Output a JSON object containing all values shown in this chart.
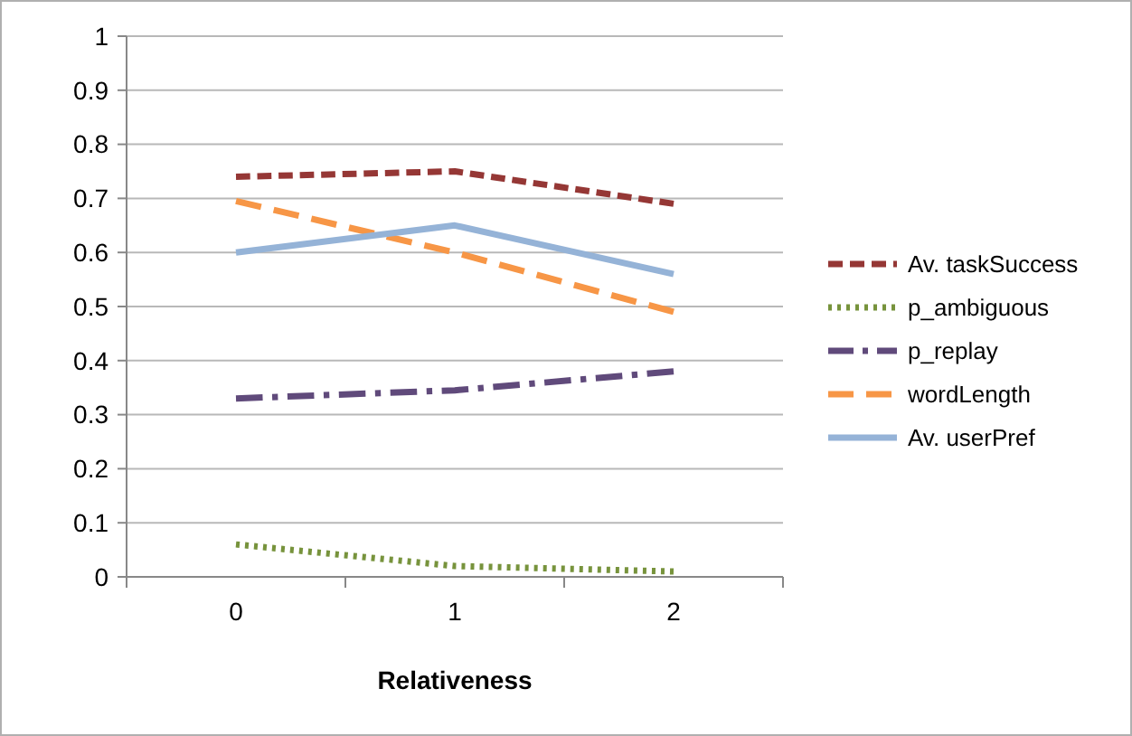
{
  "chart_data": {
    "type": "line",
    "xlabel": "Relativeness",
    "categories": [
      "0",
      "1",
      "2"
    ],
    "ylim": [
      0,
      1
    ],
    "yticks": [
      0,
      0.1,
      0.2,
      0.3,
      0.4,
      0.5,
      0.6,
      0.7,
      0.8,
      0.9,
      1
    ],
    "grid": "y",
    "legend": "right",
    "marker": "none",
    "series": [
      {
        "name": "Av. taskSuccess",
        "color": "#953735",
        "line_style": "dashed",
        "values": [
          0.74,
          0.75,
          0.69
        ]
      },
      {
        "name": "p_ambiguous",
        "color": "#77933c",
        "line_style": "dotted",
        "values": [
          0.06,
          0.02,
          0.01
        ]
      },
      {
        "name": "p_replay",
        "color": "#604a7b",
        "line_style": "dashdot",
        "values": [
          0.33,
          0.345,
          0.38
        ]
      },
      {
        "name": "wordLength",
        "color": "#f79646",
        "line_style": "longdash",
        "values": [
          0.695,
          0.6,
          0.49
        ]
      },
      {
        "name": "Av. userPref",
        "color": "#95b3d7",
        "line_style": "solid",
        "values": [
          0.6,
          0.65,
          0.56
        ]
      }
    ]
  }
}
